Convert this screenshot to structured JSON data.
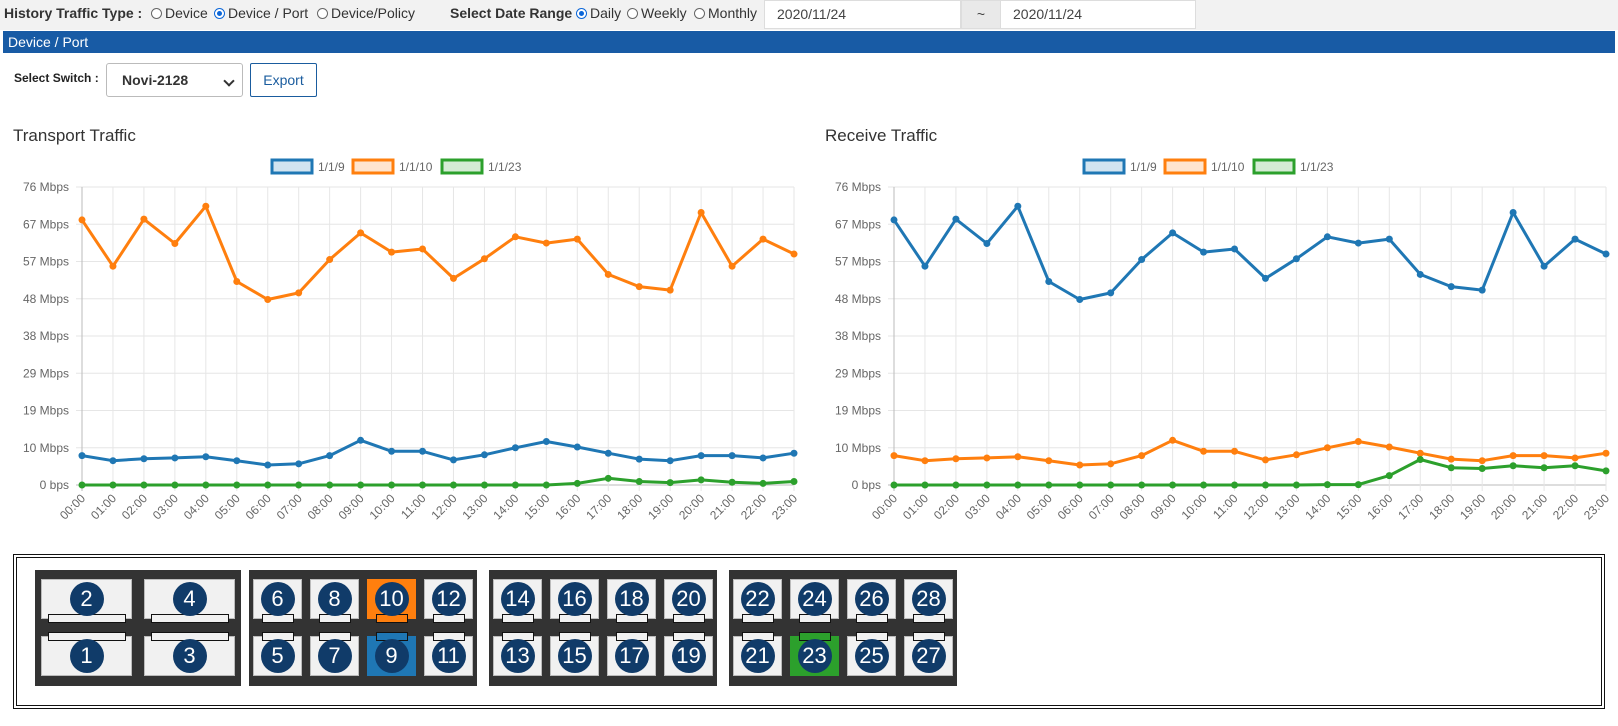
{
  "filter": {
    "history_label": "History Traffic Type :",
    "type_options": [
      {
        "label": "Device",
        "selected": false
      },
      {
        "label": "Device / Port",
        "selected": true
      },
      {
        "label": "Device/Policy",
        "selected": false
      }
    ],
    "date_label": "Select Date Range",
    "range_options": [
      {
        "label": "Daily",
        "selected": true
      },
      {
        "label": "Weekly",
        "selected": false
      },
      {
        "label": "Monthly",
        "selected": false
      }
    ],
    "date_from": "2020/11/24",
    "date_sep": "~",
    "date_to": "2020/11/24"
  },
  "section_title": "Device / Port",
  "switch": {
    "label": "Select Switch :",
    "selected": "Novi-2128",
    "export_label": "Export"
  },
  "colors": {
    "port_1_1_9": "#1f77b4",
    "port_1_1_10": "#ff7f0e",
    "port_1_1_23": "#2ca02c",
    "title_bar": "#185ba5"
  },
  "chart_data": [
    {
      "type": "line",
      "title": "Transport Traffic",
      "x": [
        "00:00",
        "01:00",
        "02:00",
        "03:00",
        "04:00",
        "05:00",
        "06:00",
        "07:00",
        "08:00",
        "09:00",
        "10:00",
        "11:00",
        "12:00",
        "13:00",
        "14:00",
        "15:00",
        "16:00",
        "17:00",
        "18:00",
        "19:00",
        "20:00",
        "21:00",
        "22:00",
        "23:00"
      ],
      "y_ticks": [
        "76 Mbps",
        "67 Mbps",
        "57 Mbps",
        "48 Mbps",
        "38 Mbps",
        "29 Mbps",
        "19 Mbps",
        "10 Mbps",
        "0 bps"
      ],
      "ylim": [
        0,
        76
      ],
      "grid": true,
      "legend": "top-center",
      "series": [
        {
          "name": "1/1/9",
          "values": [
            7.5,
            6.2,
            6.7,
            6.9,
            7.2,
            6.2,
            5.1,
            5.4,
            7.5,
            11.4,
            8.6,
            8.6,
            6.4,
            7.7,
            9.5,
            11.1,
            9.7,
            8.1,
            6.6,
            6.2,
            7.5,
            7.5,
            6.9,
            8.1
          ]
        },
        {
          "name": "1/1/10",
          "values": [
            67.6,
            55.8,
            67.8,
            61.6,
            71.1,
            51.9,
            47.3,
            49.0,
            57.5,
            64.3,
            59.4,
            60.2,
            52.7,
            57.7,
            63.3,
            61.7,
            62.7,
            53.7,
            50.6,
            49.7,
            69.5,
            55.8,
            62.7,
            58.9
          ]
        },
        {
          "name": "1/1/23",
          "values": [
            0,
            0,
            0,
            0,
            0,
            0,
            0,
            0,
            0,
            0,
            0,
            0,
            0,
            0,
            0,
            0,
            0.4,
            1.7,
            0.9,
            0.6,
            1.3,
            0.7,
            0.4,
            0.9
          ]
        }
      ]
    },
    {
      "type": "line",
      "title": "Receive Traffic",
      "x": [
        "00:00",
        "01:00",
        "02:00",
        "03:00",
        "04:00",
        "05:00",
        "06:00",
        "07:00",
        "08:00",
        "09:00",
        "10:00",
        "11:00",
        "12:00",
        "13:00",
        "14:00",
        "15:00",
        "16:00",
        "17:00",
        "18:00",
        "19:00",
        "20:00",
        "21:00",
        "22:00",
        "23:00"
      ],
      "y_ticks": [
        "76 Mbps",
        "67 Mbps",
        "57 Mbps",
        "48 Mbps",
        "38 Mbps",
        "29 Mbps",
        "19 Mbps",
        "10 Mbps",
        "0 bps"
      ],
      "ylim": [
        0,
        76
      ],
      "grid": true,
      "legend": "top-center",
      "series": [
        {
          "name": "1/1/9",
          "values": [
            67.6,
            55.8,
            67.8,
            61.6,
            71.1,
            51.9,
            47.3,
            49.0,
            57.5,
            64.3,
            59.4,
            60.2,
            52.7,
            57.7,
            63.3,
            61.7,
            62.7,
            53.7,
            50.6,
            49.7,
            69.5,
            55.8,
            62.7,
            58.9
          ]
        },
        {
          "name": "1/1/10",
          "values": [
            7.5,
            6.2,
            6.7,
            6.9,
            7.2,
            6.2,
            5.1,
            5.4,
            7.5,
            11.4,
            8.6,
            8.6,
            6.4,
            7.7,
            9.5,
            11.1,
            9.7,
            8.1,
            6.6,
            6.2,
            7.5,
            7.5,
            6.9,
            8.1
          ]
        },
        {
          "name": "1/1/23",
          "values": [
            0,
            0,
            0,
            0,
            0,
            0,
            0,
            0,
            0,
            0,
            0,
            0,
            0,
            0,
            0.1,
            0.1,
            2.4,
            6.5,
            4.4,
            4.2,
            4.9,
            4.4,
            4.9,
            3.6
          ]
        }
      ]
    }
  ],
  "ports": {
    "groups": [
      {
        "top": [
          "2",
          "4"
        ],
        "bottom": [
          "1",
          "3"
        ]
      },
      {
        "top": [
          "6",
          "8",
          "10",
          "12"
        ],
        "bottom": [
          "5",
          "7",
          "9",
          "11"
        ]
      },
      {
        "top": [
          "14",
          "16",
          "18",
          "20"
        ],
        "bottom": [
          "13",
          "15",
          "17",
          "19"
        ]
      },
      {
        "top": [
          "22",
          "24",
          "26",
          "28"
        ],
        "bottom": [
          "21",
          "23",
          "25",
          "27"
        ]
      }
    ],
    "highlighted": {
      "10": "#ff7f0e",
      "9": "#1f77b4",
      "23": "#2ca02c"
    }
  }
}
